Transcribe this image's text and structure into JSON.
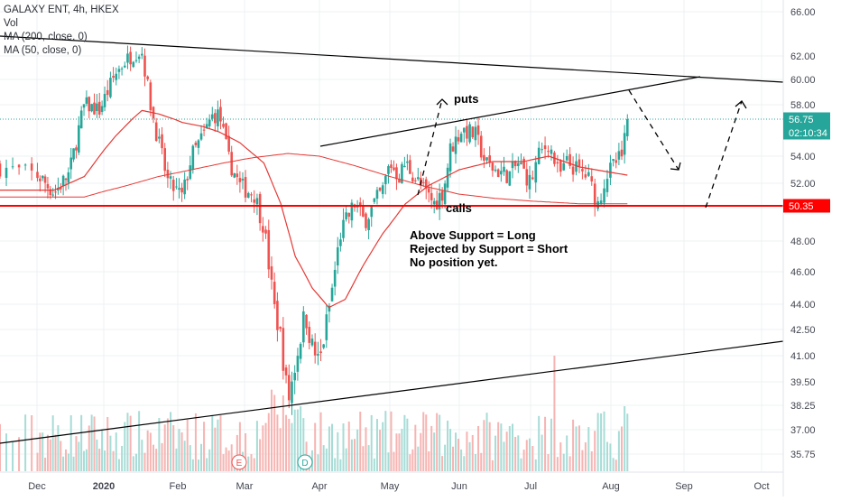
{
  "legend": {
    "symbol": "GALAXY ENT, 4h, HKEX",
    "volume": "Vol",
    "ma200": "MA (200, close, 0)",
    "ma50": "MA (50, close, 0)"
  },
  "badges": {
    "price": "56.75",
    "countdown": "02:10:34",
    "support": "50.35"
  },
  "annotations": {
    "puts": "puts",
    "calls": "calls",
    "note": [
      "Above Support = Long",
      "Rejected by Support = Short",
      "No position yet."
    ]
  },
  "events": [
    "E",
    "D"
  ],
  "colors": {
    "up": "#26a69a",
    "down": "#ef5350",
    "support": "#ff0000",
    "ma": "#e53935",
    "price_line": "#26a69a",
    "badge_text": "#ffffff"
  },
  "chart_data": {
    "type": "candlestick",
    "symbol": "GALAXY ENT",
    "interval": "4h",
    "exchange": "HKEX",
    "x_ticks": [
      "Dec",
      "2020",
      "Feb",
      "Mar",
      "Apr",
      "May",
      "Jun",
      "Jul",
      "Aug",
      "Sep",
      "Oct"
    ],
    "y_ticks": [
      66.0,
      62.0,
      60.0,
      58.0,
      54.0,
      52.0,
      48.0,
      46.0,
      44.0,
      42.5,
      41.0,
      39.5,
      38.25,
      37.0,
      35.75
    ],
    "y_range": [
      35.2,
      67.0
    ],
    "last_price": 56.75,
    "support_level": 50.35,
    "close_path": [
      [
        "Nov 24",
        53.2
      ],
      [
        "Dec 2",
        52.5
      ],
      [
        "Dec 9",
        51.3
      ],
      [
        "Dec 16",
        52.7
      ],
      [
        "Dec 23",
        58.0
      ],
      [
        "Dec 30",
        57.5
      ],
      [
        "Jan 6",
        60.5
      ],
      [
        "Jan 10",
        61.6
      ],
      [
        "Jan 15",
        62.4
      ],
      [
        "Jan 17",
        62.3
      ],
      [
        "Jan 21",
        57.5
      ],
      [
        "Jan 24",
        55.0
      ],
      [
        "Jan 28",
        52.0
      ],
      [
        "Feb 3",
        51.0
      ],
      [
        "Feb 7",
        54.0
      ],
      [
        "Feb 12",
        55.5
      ],
      [
        "Feb 16",
        57.0
      ],
      [
        "Feb 19",
        57.2
      ],
      [
        "Feb 23",
        53.8
      ],
      [
        "Feb 28",
        51.8
      ],
      [
        "Mar 5",
        51.2
      ],
      [
        "Mar 9",
        49.0
      ],
      [
        "Mar 13",
        44.0
      ],
      [
        "Mar 16",
        42.0
      ],
      [
        "Mar 19",
        38.4
      ],
      [
        "Mar 22",
        40.5
      ],
      [
        "Mar 26",
        43.5
      ],
      [
        "Mar 29",
        41.5
      ],
      [
        "Apr 1",
        40.5
      ],
      [
        "Apr 6",
        44.5
      ],
      [
        "Apr 10",
        48.5
      ],
      [
        "Apr 16",
        50.5
      ],
      [
        "Apr 20",
        49.3
      ],
      [
        "Apr 24",
        50.4
      ],
      [
        "Apr 28",
        51.5
      ],
      [
        "May 1",
        53.5
      ],
      [
        "May 5",
        52.5
      ],
      [
        "May 8",
        53.5
      ],
      [
        "May 12",
        52.5
      ],
      [
        "May 16",
        51.5
      ],
      [
        "May 21",
        50.5
      ],
      [
        "May 25",
        51.5
      ],
      [
        "May 28",
        54.5
      ],
      [
        "Jun 2",
        56.0
      ],
      [
        "Jun 5",
        55.8
      ],
      [
        "Jun 8",
        55.5
      ],
      [
        "Jun 12",
        53.5
      ],
      [
        "Jun 16",
        53.0
      ],
      [
        "Jun 22",
        52.6
      ],
      [
        "Jun 26",
        53.5
      ],
      [
        "Jul 1",
        52.0
      ],
      [
        "Jul 4",
        54.0
      ],
      [
        "Jul 8",
        55.0
      ],
      [
        "Jul 12",
        52.5
      ],
      [
        "Jul 15",
        53.5
      ],
      [
        "Jul 19",
        53.0
      ],
      [
        "Jul 23",
        52.5
      ],
      [
        "Jul 27",
        50.5
      ],
      [
        "Jul 30",
        52.5
      ],
      [
        "Aug 3",
        53.5
      ],
      [
        "Aug 6",
        54.0
      ],
      [
        "Aug 8",
        56.75
      ]
    ],
    "ma50_path": [
      [
        "Nov 24",
        51.5
      ],
      [
        "Dec 9",
        51.5
      ],
      [
        "Dec 23",
        52.5
      ],
      [
        "Jan 6",
        55.5
      ],
      [
        "Jan 17",
        57.5
      ],
      [
        "Jan 24",
        57.2
      ],
      [
        "Feb 3",
        56.5
      ],
      [
        "Feb 12",
        56.2
      ],
      [
        "Feb 19",
        55.8
      ],
      [
        "Feb 28",
        55.0
      ],
      [
        "Mar 9",
        53.5
      ],
      [
        "Mar 16",
        50.5
      ],
      [
        "Mar 22",
        47.0
      ],
      [
        "Mar 29",
        45.0
      ],
      [
        "Apr 5",
        43.8
      ],
      [
        "Apr 12",
        44.3
      ],
      [
        "Apr 20",
        46.5
      ],
      [
        "Apr 28",
        48.5
      ],
      [
        "May 8",
        50.5
      ],
      [
        "May 18",
        51.8
      ],
      [
        "Jun 1",
        53.0
      ],
      [
        "Jun 15",
        53.6
      ],
      [
        "Jun 28",
        53.6
      ],
      [
        "Jul 8",
        54.0
      ],
      [
        "Jul 20",
        53.2
      ],
      [
        "Aug 1",
        52.8
      ],
      [
        "Aug 8",
        52.6
      ]
    ],
    "ma200_path": [
      [
        "Nov 24",
        51.0
      ],
      [
        "Dec 9",
        51.0
      ],
      [
        "Dec 23",
        51.0
      ],
      [
        "Jan 10",
        51.8
      ],
      [
        "Jan 24",
        52.5
      ],
      [
        "Feb 7",
        53.0
      ],
      [
        "Feb 21",
        53.5
      ],
      [
        "Mar 5",
        53.9
      ],
      [
        "Mar 19",
        54.2
      ],
      [
        "Apr 1",
        54.0
      ],
      [
        "Apr 16",
        53.3
      ],
      [
        "May 1",
        52.5
      ],
      [
        "May 16",
        51.8
      ],
      [
        "Jun 1",
        51.2
      ],
      [
        "Jun 16",
        50.9
      ],
      [
        "Jul 1",
        50.7
      ],
      [
        "Jul 20",
        50.5
      ],
      [
        "Aug 8",
        50.5
      ]
    ]
  }
}
